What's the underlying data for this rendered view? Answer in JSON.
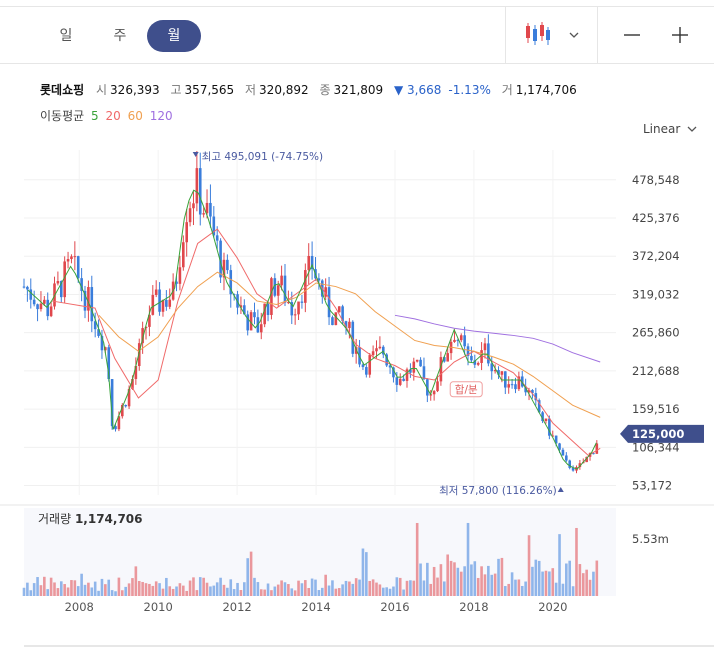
{
  "tabs": [
    {
      "label": "일",
      "active": false
    },
    {
      "label": "주",
      "active": false
    },
    {
      "label": "월",
      "active": true
    }
  ],
  "toolbar": {
    "chart_type_icon": "candlestick-icon",
    "dropdown_icon": "chevron-down-icon",
    "zoom_out_icon": "minus-icon",
    "zoom_in_icon": "plus-icon"
  },
  "info": {
    "name": "롯데쇼핑",
    "open_label": "시",
    "open": "326,393",
    "high_label": "고",
    "high": "357,565",
    "low_label": "저",
    "low": "320,892",
    "close_label": "종",
    "close": "321,809",
    "change": "▼ 3,668",
    "change_pct": "-1.13%",
    "volume_label": "거",
    "volume": "1,174,706"
  },
  "moving_avg": {
    "label": "이동평균",
    "periods": [
      {
        "label": "5",
        "color": "#3aa33a"
      },
      {
        "label": "20",
        "color": "#f06a6a"
      },
      {
        "label": "60",
        "color": "#f0a050"
      },
      {
        "label": "120",
        "color": "#a070e0"
      }
    ]
  },
  "scale_label": "Linear",
  "colors": {
    "up": "#e0474c",
    "down": "#3a7ddb",
    "current_price_tag": "#3f4f8c"
  },
  "chart_data": {
    "type": "candlestick",
    "y_ticks": [
      "478,548",
      "425,376",
      "372,204",
      "319,032",
      "265,860",
      "212,688",
      "159,516",
      "106,344",
      "53,172"
    ],
    "y_tick_values": [
      478548,
      425376,
      372204,
      319032,
      265860,
      212688,
      159516,
      106344,
      53172
    ],
    "x_ticks": [
      "2008",
      "2010",
      "2012",
      "2014",
      "2016",
      "2018",
      "2020"
    ],
    "x_tick_values": [
      2008,
      2010,
      2012,
      2014,
      2016,
      2018,
      2020
    ],
    "ylim": [
      40000,
      520000
    ],
    "xlim": [
      2006.6,
      2021.6
    ],
    "current_price": "125,000",
    "current_price_value": 125000,
    "max_annotation": "최고 495,091 (-74.75%)",
    "max_point": {
      "x": 2010.95,
      "y": 495091
    },
    "min_annotation": "최저 57,800 (116.26%)",
    "min_point": {
      "x": 2020.2,
      "y": 57800
    },
    "event_label": "합/분",
    "event_point": {
      "x": 2017.45,
      "y": 185000
    },
    "price_anchors": [
      [
        2006.6,
        330000
      ],
      [
        2007.2,
        300000
      ],
      [
        2007.8,
        360000
      ],
      [
        2008.3,
        300000
      ],
      [
        2008.7,
        240000
      ],
      [
        2008.85,
        130000
      ],
      [
        2009.3,
        190000
      ],
      [
        2009.8,
        300000
      ],
      [
        2010.4,
        320000
      ],
      [
        2010.7,
        440000
      ],
      [
        2010.95,
        470000
      ],
      [
        2011.3,
        420000
      ],
      [
        2011.7,
        340000
      ],
      [
        2012.2,
        290000
      ],
      [
        2012.5,
        270000
      ],
      [
        2013.0,
        340000
      ],
      [
        2013.4,
        300000
      ],
      [
        2013.9,
        360000
      ],
      [
        2014.3,
        300000
      ],
      [
        2014.8,
        270000
      ],
      [
        2015.2,
        220000
      ],
      [
        2015.7,
        240000
      ],
      [
        2016.1,
        200000
      ],
      [
        2016.5,
        220000
      ],
      [
        2016.9,
        180000
      ],
      [
        2017.3,
        240000
      ],
      [
        2017.5,
        270000
      ],
      [
        2017.9,
        220000
      ],
      [
        2018.3,
        240000
      ],
      [
        2018.7,
        200000
      ],
      [
        2019.2,
        200000
      ],
      [
        2019.6,
        160000
      ],
      [
        2020.0,
        120000
      ],
      [
        2020.3,
        85000
      ],
      [
        2020.6,
        75000
      ],
      [
        2021.0,
        100000
      ],
      [
        2021.2,
        125000
      ]
    ],
    "ma20_anchors": [
      [
        2007.3,
        310000
      ],
      [
        2008.4,
        300000
      ],
      [
        2008.9,
        230000
      ],
      [
        2009.5,
        175000
      ],
      [
        2010.0,
        200000
      ],
      [
        2010.5,
        310000
      ],
      [
        2011.0,
        390000
      ],
      [
        2011.5,
        410000
      ],
      [
        2012.0,
        370000
      ],
      [
        2012.5,
        320000
      ],
      [
        2013.0,
        300000
      ],
      [
        2013.5,
        320000
      ],
      [
        2014.0,
        340000
      ],
      [
        2014.5,
        300000
      ],
      [
        2015.0,
        250000
      ],
      [
        2015.5,
        230000
      ],
      [
        2016.0,
        220000
      ],
      [
        2016.5,
        205000
      ],
      [
        2017.0,
        200000
      ],
      [
        2017.5,
        225000
      ],
      [
        2018.0,
        240000
      ],
      [
        2018.5,
        225000
      ],
      [
        2019.0,
        210000
      ],
      [
        2019.5,
        180000
      ],
      [
        2020.0,
        140000
      ],
      [
        2020.5,
        115000
      ],
      [
        2020.9,
        95000
      ],
      [
        2021.2,
        105000
      ]
    ],
    "ma60_anchors": [
      [
        2008.5,
        290000
      ],
      [
        2009.0,
        260000
      ],
      [
        2009.5,
        240000
      ],
      [
        2010.0,
        260000
      ],
      [
        2010.5,
        300000
      ],
      [
        2011.0,
        330000
      ],
      [
        2011.5,
        350000
      ],
      [
        2012.0,
        335000
      ],
      [
        2012.5,
        310000
      ],
      [
        2013.0,
        305000
      ],
      [
        2013.5,
        315000
      ],
      [
        2014.0,
        335000
      ],
      [
        2014.5,
        330000
      ],
      [
        2015.0,
        320000
      ],
      [
        2015.5,
        295000
      ],
      [
        2016.0,
        275000
      ],
      [
        2016.5,
        255000
      ],
      [
        2017.0,
        248000
      ],
      [
        2017.5,
        245000
      ],
      [
        2018.0,
        240000
      ],
      [
        2018.5,
        232000
      ],
      [
        2019.0,
        222000
      ],
      [
        2019.5,
        205000
      ],
      [
        2020.0,
        185000
      ],
      [
        2020.5,
        165000
      ],
      [
        2021.2,
        148000
      ]
    ],
    "ma120_anchors": [
      [
        2016.0,
        290000
      ],
      [
        2016.5,
        285000
      ],
      [
        2017.0,
        278000
      ],
      [
        2017.5,
        272000
      ],
      [
        2018.0,
        268000
      ],
      [
        2018.5,
        265000
      ],
      [
        2019.0,
        262000
      ],
      [
        2019.5,
        258000
      ],
      [
        2020.0,
        250000
      ],
      [
        2020.5,
        238000
      ],
      [
        2021.2,
        225000
      ]
    ],
    "volume": {
      "label": "거래량",
      "value": "1,174,706",
      "axis_label": "5.53m",
      "axis_value": 5530000,
      "ylim": [
        0,
        7400000
      ]
    }
  }
}
